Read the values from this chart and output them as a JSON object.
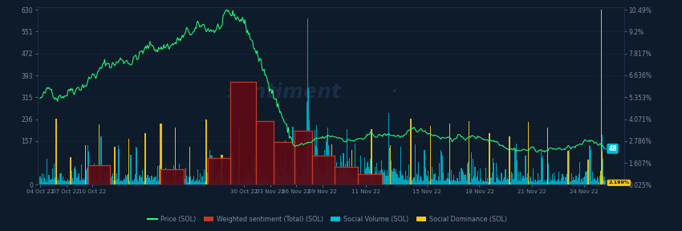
{
  "background_color": "#0d1b2a",
  "plot_bg_color": "#0d1b2a",
  "price_color": "#26ff7f",
  "sentiment_fill_color": "#5a0a14",
  "sentiment_border_color": "#c0392b",
  "social_volume_color": "#00bcd4",
  "social_dominance_color": "#f5c518",
  "watermark_text": "santiment",
  "watermark_color": "#1a2d44",
  "legend_items": [
    "Price (SOL)",
    "Weighted sentiment (Total) (SOL)",
    "Social Volume (SOL)",
    "Social Dominance (SOL)"
  ],
  "legend_colors": [
    "#26ff7f",
    "#c0392b",
    "#00bcd4",
    "#f5c518"
  ],
  "left_yticks": [
    0,
    157,
    236,
    315,
    393,
    472,
    551,
    630
  ],
  "right_ytick_labels": [
    "0.025%",
    "1.607%",
    "2.786%",
    "4.071%",
    "5.353%",
    "6.636%",
    "7.817%",
    "9.2%",
    "10.49%"
  ],
  "x_tick_labels": [
    "04 Oct 22",
    "07 Oct 22",
    "10 Oct 22",
    "30 Oct 22",
    "03 Nov 22",
    "06 Nov 22",
    "09 Nov 22",
    "11 Nov 22",
    "15 Nov 22",
    "18 Nov 22",
    "21 Nov 22",
    "24 Nov 22"
  ],
  "price_label_value": "48",
  "dominance_label_value": "2.199%",
  "N": 650
}
